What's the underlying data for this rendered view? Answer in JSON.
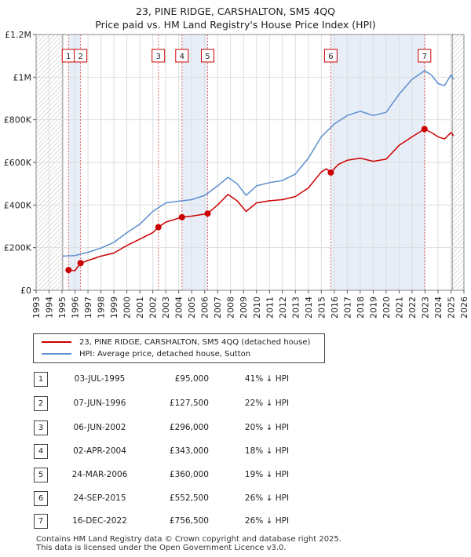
{
  "chart_data": {
    "type": "line",
    "title": "23, PINE RIDGE, CARSHALTON, SM5 4QQ",
    "subtitle": "Price paid vs. HM Land Registry's House Price Index (HPI)",
    "xlim": [
      1993,
      2026
    ],
    "ylim": [
      0,
      1200000
    ],
    "x_ticks": [
      "1993",
      "1994",
      "1995",
      "1996",
      "1997",
      "1998",
      "1999",
      "2000",
      "2001",
      "2002",
      "2003",
      "2004",
      "2005",
      "2006",
      "2007",
      "2008",
      "2009",
      "2010",
      "2011",
      "2012",
      "2013",
      "2014",
      "2015",
      "2016",
      "2017",
      "2018",
      "2019",
      "2020",
      "2021",
      "2022",
      "2023",
      "2024",
      "2025",
      "2026"
    ],
    "y_ticks": [
      {
        "value": 0,
        "label": "£0"
      },
      {
        "value": 200000,
        "label": "£200K"
      },
      {
        "value": 400000,
        "label": "£400K"
      },
      {
        "value": 600000,
        "label": "£600K"
      },
      {
        "value": 800000,
        "label": "£800K"
      },
      {
        "value": 1000000,
        "label": "£1M"
      },
      {
        "value": 1200000,
        "label": "£1.2M"
      }
    ],
    "hatched_ranges": [
      [
        1993,
        1995.05
      ],
      [
        2025.1,
        2026
      ]
    ],
    "shaded_ranges": [
      [
        1995.5,
        1996.43
      ],
      [
        2004.25,
        2006.23
      ],
      [
        2015.73,
        2022.96
      ]
    ],
    "series": [
      {
        "name": "23, PINE RIDGE, CARSHALTON, SM5 4QQ (detached house)",
        "color": "#cc0000",
        "points": [
          [
            1995.5,
            95000
          ],
          [
            1996.0,
            92000
          ],
          [
            1996.43,
            127500
          ],
          [
            1997,
            140000
          ],
          [
            1998,
            160000
          ],
          [
            1999,
            175000
          ],
          [
            2000,
            210000
          ],
          [
            2001,
            240000
          ],
          [
            2002,
            270000
          ],
          [
            2002.43,
            296000
          ],
          [
            2003,
            320000
          ],
          [
            2004.25,
            343000
          ],
          [
            2005,
            348000
          ],
          [
            2006.23,
            360000
          ],
          [
            2007,
            400000
          ],
          [
            2007.8,
            450000
          ],
          [
            2008.5,
            420000
          ],
          [
            2009.2,
            370000
          ],
          [
            2010,
            410000
          ],
          [
            2011,
            420000
          ],
          [
            2012,
            425000
          ],
          [
            2013,
            440000
          ],
          [
            2014,
            480000
          ],
          [
            2015,
            555000
          ],
          [
            2015.4,
            570000
          ],
          [
            2015.73,
            552500
          ],
          [
            2016.3,
            590000
          ],
          [
            2017,
            610000
          ],
          [
            2018,
            620000
          ],
          [
            2019,
            605000
          ],
          [
            2020,
            615000
          ],
          [
            2021,
            680000
          ],
          [
            2022,
            720000
          ],
          [
            2022.96,
            756500
          ],
          [
            2023.5,
            740000
          ],
          [
            2024,
            720000
          ],
          [
            2024.5,
            710000
          ],
          [
            2025,
            740000
          ],
          [
            2025.2,
            725000
          ]
        ]
      },
      {
        "name": "HPI: Average price, detached house, Sutton",
        "color": "#5b8fcf",
        "points": [
          [
            1995.0,
            160000
          ],
          [
            1996.0,
            163000
          ],
          [
            1997,
            178000
          ],
          [
            1998,
            198000
          ],
          [
            1999,
            225000
          ],
          [
            2000,
            270000
          ],
          [
            2001,
            310000
          ],
          [
            2002,
            370000
          ],
          [
            2003,
            410000
          ],
          [
            2004,
            418000
          ],
          [
            2005,
            425000
          ],
          [
            2006,
            445000
          ],
          [
            2007,
            490000
          ],
          [
            2007.8,
            530000
          ],
          [
            2008.5,
            500000
          ],
          [
            2009.2,
            445000
          ],
          [
            2010,
            490000
          ],
          [
            2011,
            505000
          ],
          [
            2012,
            515000
          ],
          [
            2013,
            545000
          ],
          [
            2014,
            620000
          ],
          [
            2015,
            720000
          ],
          [
            2016,
            780000
          ],
          [
            2017,
            820000
          ],
          [
            2018,
            840000
          ],
          [
            2019,
            820000
          ],
          [
            2020,
            835000
          ],
          [
            2021,
            920000
          ],
          [
            2022,
            990000
          ],
          [
            2022.96,
            1030000
          ],
          [
            2023.5,
            1010000
          ],
          [
            2024,
            970000
          ],
          [
            2024.5,
            960000
          ],
          [
            2025,
            1010000
          ],
          [
            2025.2,
            990000
          ]
        ]
      }
    ],
    "sale_points": [
      {
        "label": "1",
        "x": 1995.5,
        "y": 95000
      },
      {
        "label": "2",
        "x": 1996.43,
        "y": 127500
      },
      {
        "label": "3",
        "x": 2002.43,
        "y": 296000
      },
      {
        "label": "4",
        "x": 2004.25,
        "y": 343000
      },
      {
        "label": "5",
        "x": 2006.23,
        "y": 360000
      },
      {
        "label": "6",
        "x": 2015.73,
        "y": 552500
      },
      {
        "label": "7",
        "x": 2022.96,
        "y": 756500
      }
    ]
  },
  "legend": {
    "property": "23, PINE RIDGE, CARSHALTON, SM5 4QQ (detached house)",
    "hpi": "HPI: Average price, detached house, Sutton",
    "property_color": "#cc0000",
    "hpi_color": "#5b8fcf"
  },
  "sales": [
    {
      "num": "1",
      "date": "03-JUL-1995",
      "price": "£95,000",
      "hpi": "41% ↓ HPI"
    },
    {
      "num": "2",
      "date": "07-JUN-1996",
      "price": "£127,500",
      "hpi": "22% ↓ HPI"
    },
    {
      "num": "3",
      "date": "06-JUN-2002",
      "price": "£296,000",
      "hpi": "20% ↓ HPI"
    },
    {
      "num": "4",
      "date": "02-APR-2004",
      "price": "£343,000",
      "hpi": "18% ↓ HPI"
    },
    {
      "num": "5",
      "date": "24-MAR-2006",
      "price": "£360,000",
      "hpi": "19% ↓ HPI"
    },
    {
      "num": "6",
      "date": "24-SEP-2015",
      "price": "£552,500",
      "hpi": "26% ↓ HPI"
    },
    {
      "num": "7",
      "date": "16-DEC-2022",
      "price": "£756,500",
      "hpi": "26% ↓ HPI"
    }
  ],
  "footer": {
    "line1": "Contains HM Land Registry data © Crown copyright and database right 2025.",
    "line2": "This data is licensed under the Open Government Licence v3.0."
  }
}
